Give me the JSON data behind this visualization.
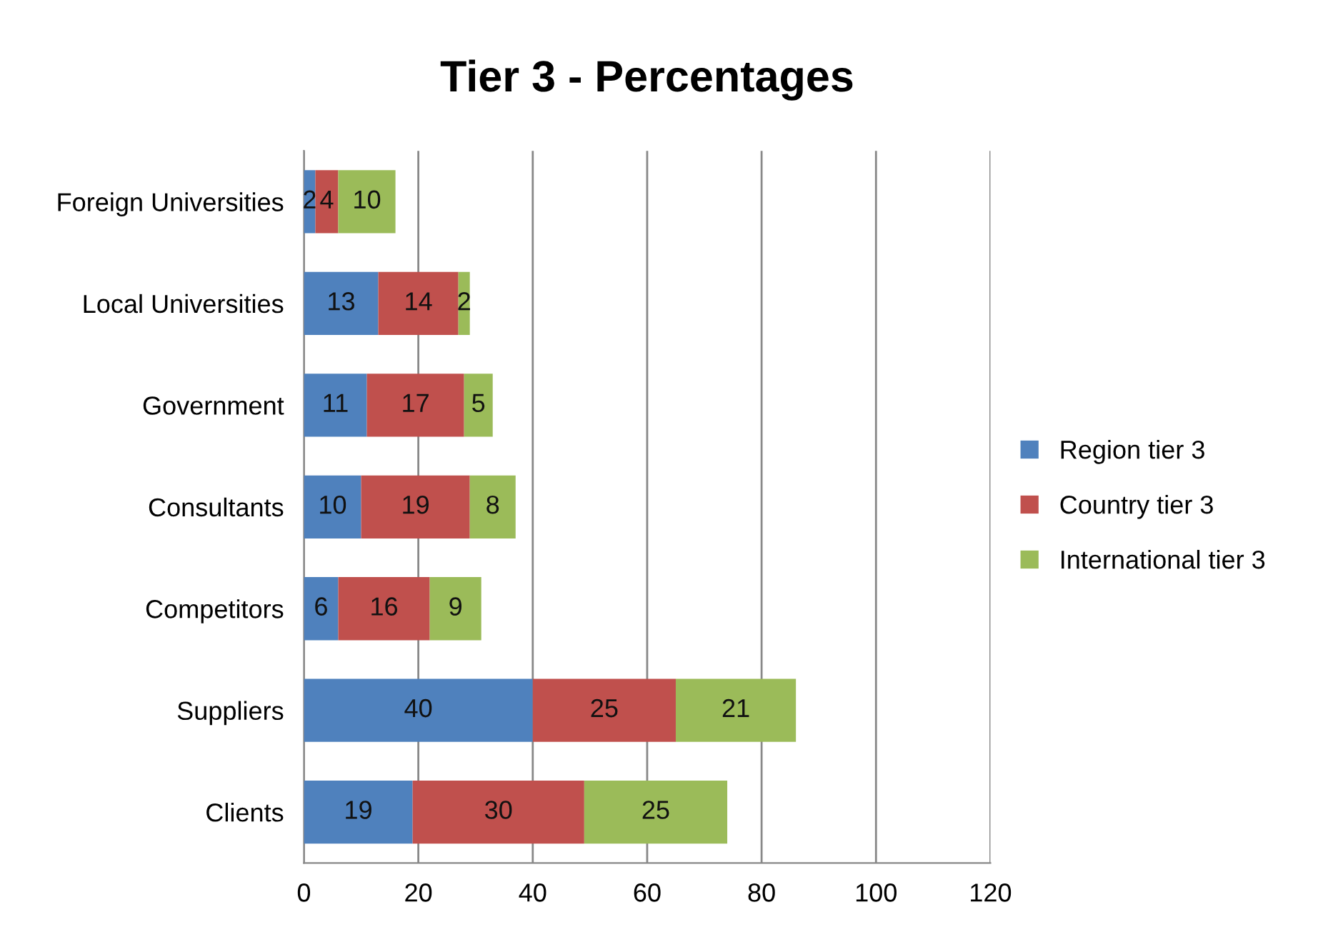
{
  "chart_data": {
    "type": "bar",
    "title": "Tier 3 - Percentages",
    "orientation": "horizontal",
    "stacked": true,
    "categories": [
      "Foreign Universities",
      "Local Universities",
      "Government",
      "Consultants",
      "Competitors",
      "Suppliers",
      "Clients"
    ],
    "series": [
      {
        "name": "Region tier 3",
        "color": "#4f81bd",
        "values": [
          2,
          13,
          11,
          10,
          6,
          40,
          19
        ]
      },
      {
        "name": "Country tier 3",
        "color": "#c0504d",
        "values": [
          4,
          14,
          17,
          19,
          16,
          25,
          30
        ]
      },
      {
        "name": "International tier 3",
        "color": "#9bbb59",
        "values": [
          10,
          2,
          5,
          8,
          9,
          21,
          25
        ]
      }
    ],
    "xlim": [
      0,
      120
    ],
    "xticks": [
      0,
      20,
      40,
      60,
      80,
      100,
      120
    ],
    "grid": "x",
    "legend": "right",
    "data_labels": true
  }
}
